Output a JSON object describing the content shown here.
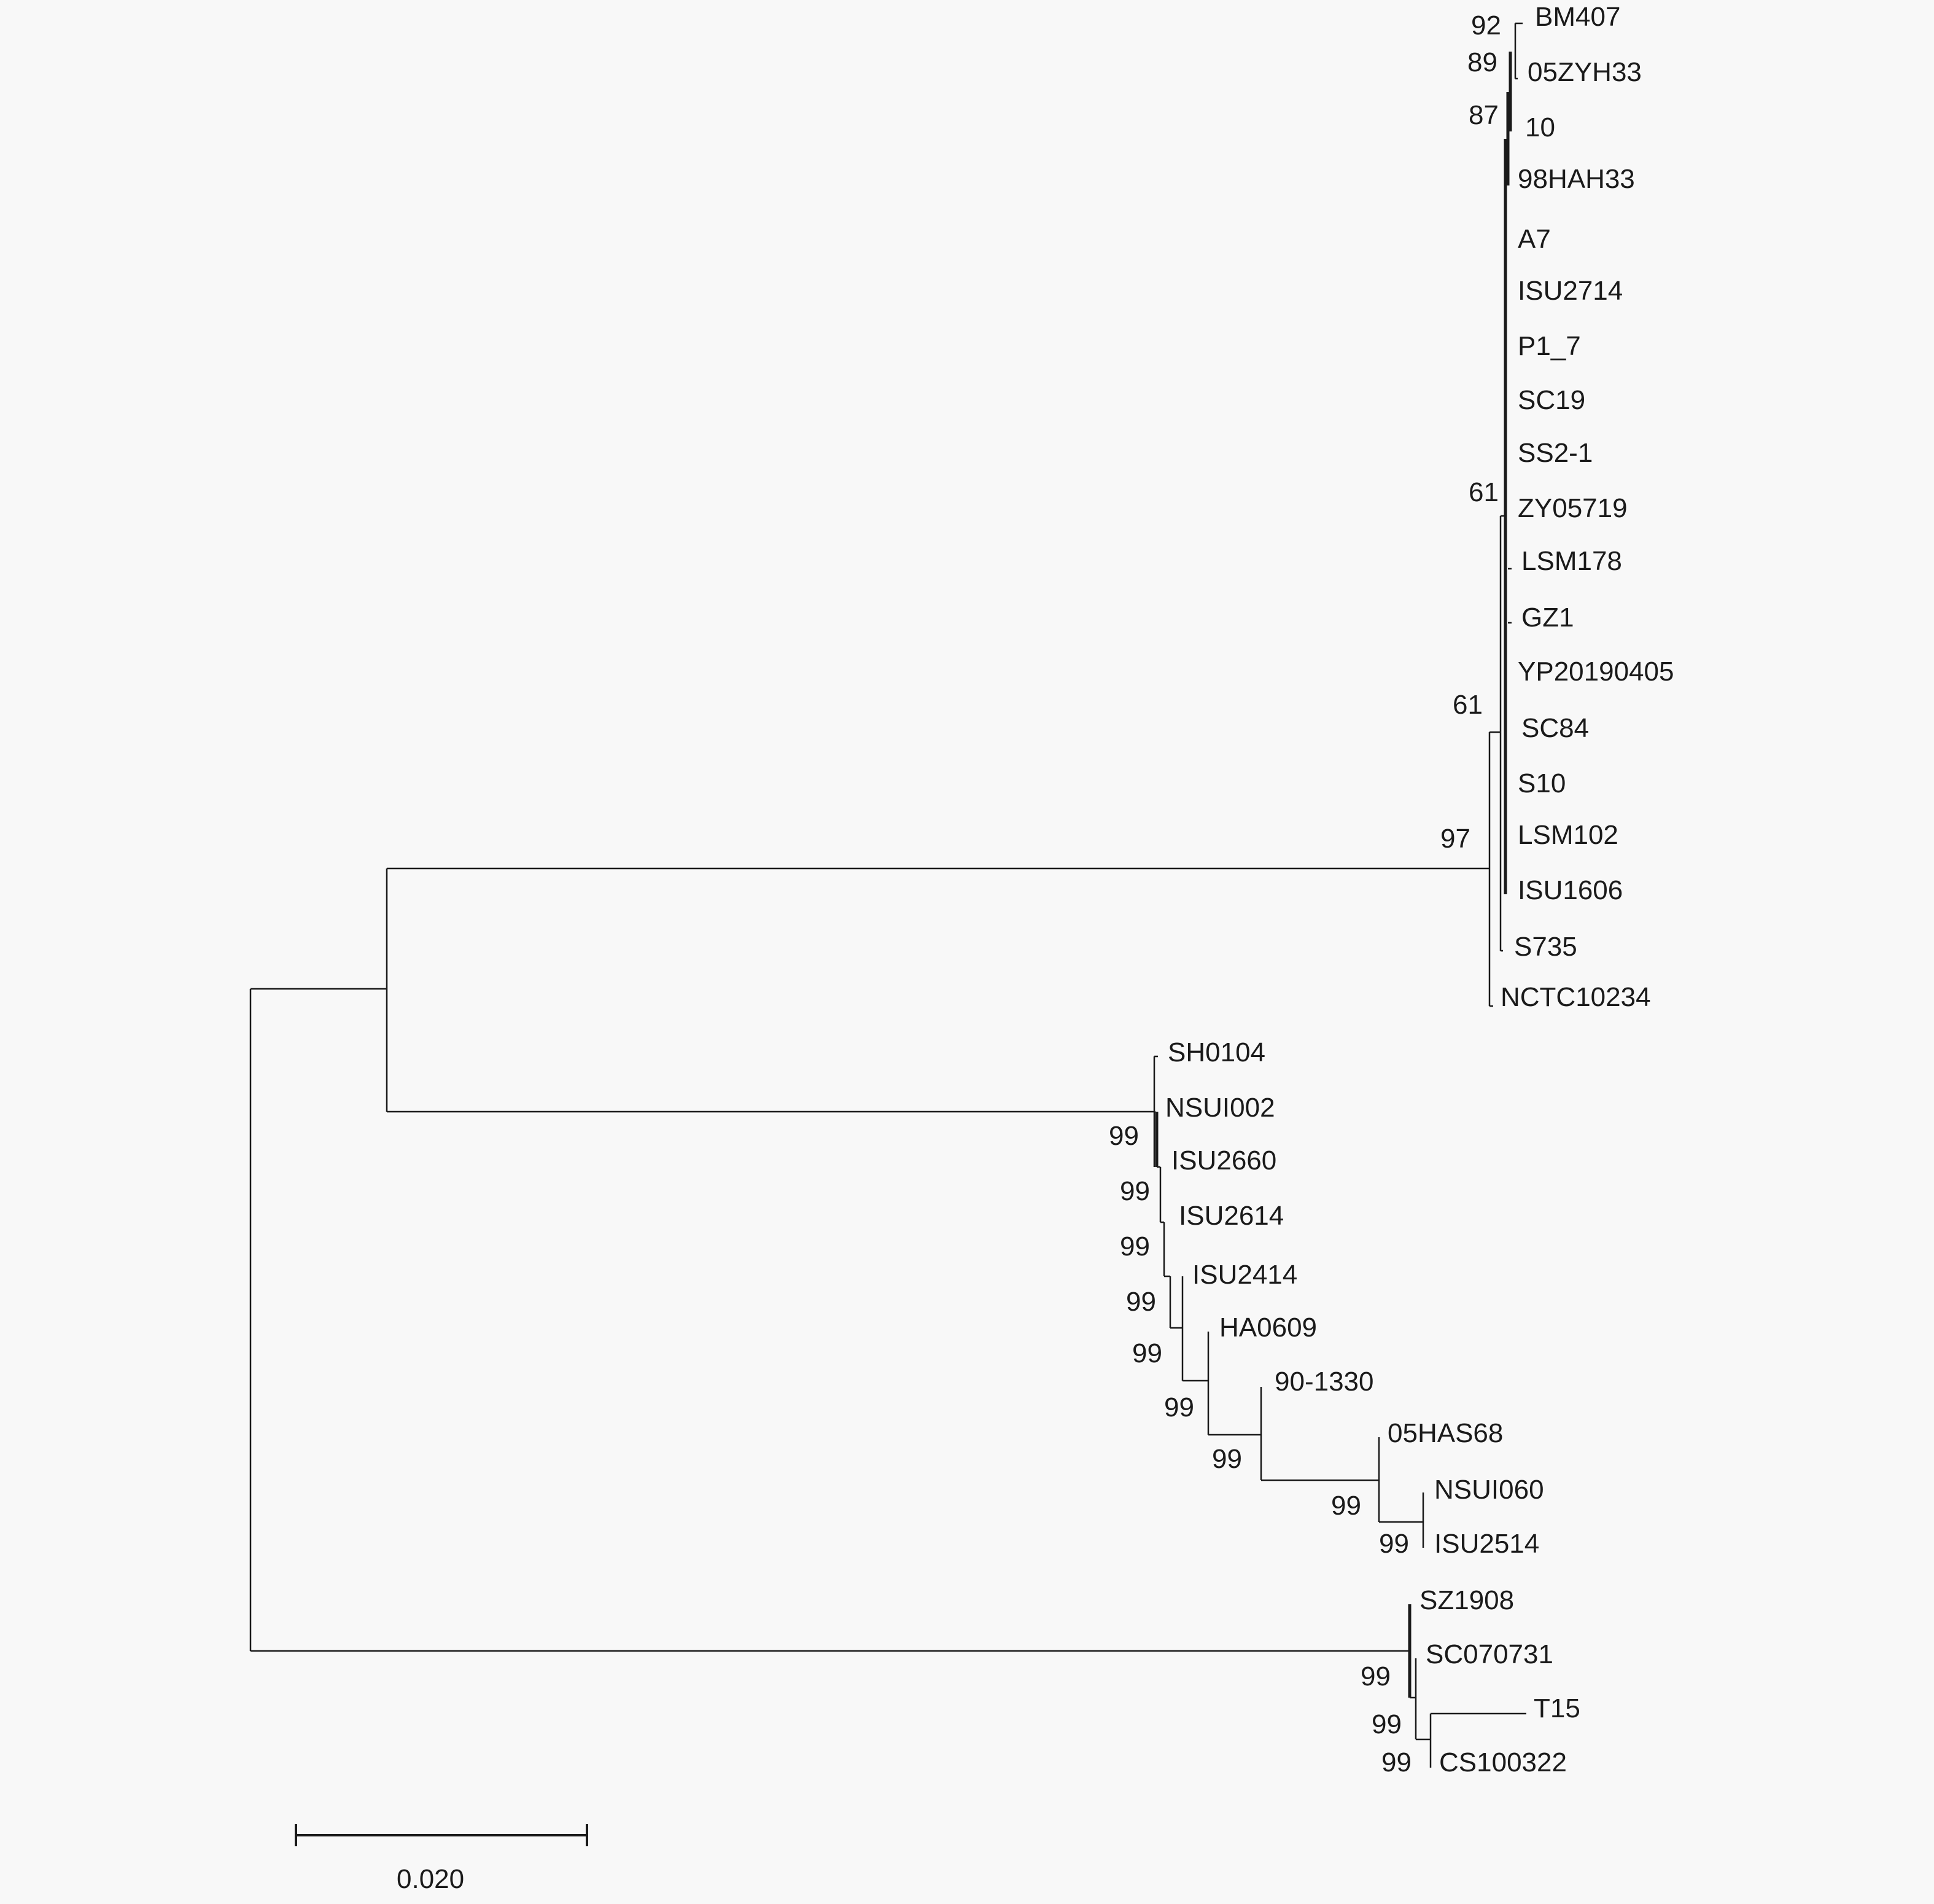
{
  "colors": {
    "default": "#1a1a1a",
    "highlight_red": "#8b1a4a",
    "highlight_green": "#4dbb3c"
  },
  "taxa": [
    {
      "label": "BM407",
      "color": "default"
    },
    {
      "label": "05ZYH33",
      "color": "highlight_red"
    },
    {
      "label": "10",
      "color": "default"
    },
    {
      "label": "98HAH33",
      "color": "highlight_red"
    },
    {
      "label": "A7",
      "color": "default"
    },
    {
      "label": "ISU2714",
      "color": "default"
    },
    {
      "label": "P1_7",
      "color": "default"
    },
    {
      "label": "SC19",
      "color": "highlight_red"
    },
    {
      "label": "SS2-1",
      "color": "default"
    },
    {
      "label": "ZY05719",
      "color": "default"
    },
    {
      "label": "LSM178",
      "color": "highlight_red"
    },
    {
      "label": "GZ1",
      "color": "default"
    },
    {
      "label": "YP20190405",
      "color": "default"
    },
    {
      "label": "SC84",
      "color": "highlight_red"
    },
    {
      "label": "S10",
      "color": "default"
    },
    {
      "label": "LSM102",
      "color": "highlight_red"
    },
    {
      "label": "ISU1606",
      "color": "default"
    },
    {
      "label": "S735",
      "color": "default"
    },
    {
      "label": "NCTC10234",
      "color": "default"
    },
    {
      "label": "SH0104",
      "color": "default"
    },
    {
      "label": "NSUI002",
      "color": "default"
    },
    {
      "label": "ISU2660",
      "color": "default"
    },
    {
      "label": "ISU2614",
      "color": "default"
    },
    {
      "label": "ISU2414",
      "color": "default"
    },
    {
      "label": "HA0609",
      "color": "default"
    },
    {
      "label": "90-1330",
      "color": "default"
    },
    {
      "label": "05HAS68",
      "color": "default"
    },
    {
      "label": "NSUI060",
      "color": "default"
    },
    {
      "label": "ISU2514",
      "color": "default"
    },
    {
      "label": "SZ1908",
      "color": "highlight_green"
    },
    {
      "label": "SC070731",
      "color": "default"
    },
    {
      "label": "T15",
      "color": "default"
    },
    {
      "label": "CS100322",
      "color": "default"
    }
  ],
  "bootstrap_values": [
    "92",
    "89",
    "87",
    "61",
    "61",
    "97",
    "99",
    "99",
    "99",
    "99",
    "99",
    "99",
    "99",
    "99",
    "99",
    "99",
    "99",
    "99"
  ],
  "scale_bar": {
    "label": "0.020",
    "length": 0.02
  }
}
